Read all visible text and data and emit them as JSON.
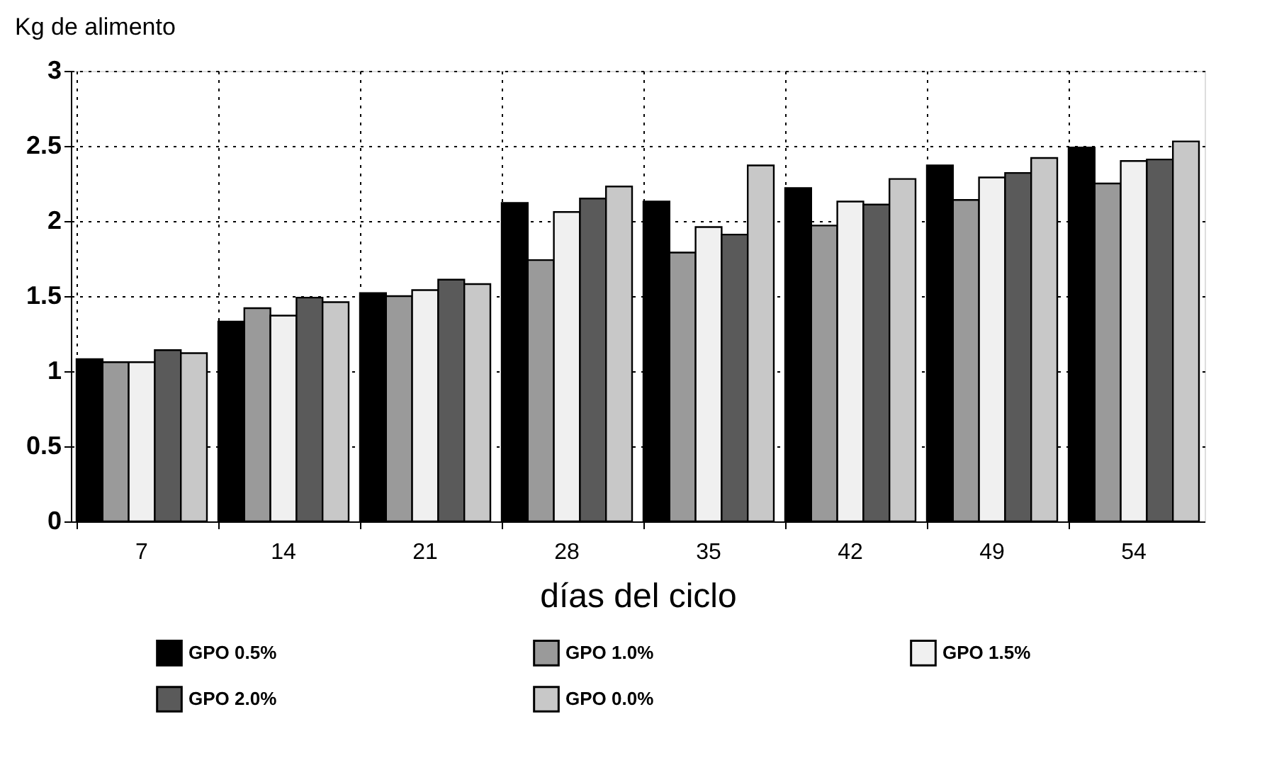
{
  "chart_data": {
    "type": "bar",
    "xlabel": "días del ciclo",
    "ylabel": "Kg de alimento",
    "categories": [
      "7",
      "14",
      "21",
      "28",
      "35",
      "42",
      "49",
      "54"
    ],
    "series": [
      {
        "name": "GPO 0.5%",
        "color": "#000000",
        "values": [
          1.08,
          1.33,
          1.52,
          2.12,
          2.13,
          2.22,
          2.37,
          2.49
        ]
      },
      {
        "name": "GPO 1.0%",
        "color": "#9a9a9a",
        "values": [
          1.06,
          1.42,
          1.5,
          1.74,
          1.79,
          1.97,
          2.14,
          2.25
        ]
      },
      {
        "name": "GPO 1.5%",
        "color": "#f0f0f0",
        "values": [
          1.06,
          1.37,
          1.54,
          2.06,
          1.96,
          2.13,
          2.29,
          2.4
        ]
      },
      {
        "name": "GPO 2.0%",
        "color": "#5a5a5a",
        "values": [
          1.14,
          1.49,
          1.61,
          2.15,
          1.91,
          2.11,
          2.32,
          2.41
        ]
      },
      {
        "name": "GPO 0.0%",
        "color": "#c8c8c8",
        "values": [
          1.12,
          1.46,
          1.58,
          2.23,
          2.37,
          2.28,
          2.42,
          2.53
        ]
      }
    ],
    "ylim": [
      0,
      3
    ],
    "yticks": [
      0,
      0.5,
      1,
      1.5,
      2,
      2.5,
      3
    ],
    "grid": true,
    "legend": "bottom"
  }
}
